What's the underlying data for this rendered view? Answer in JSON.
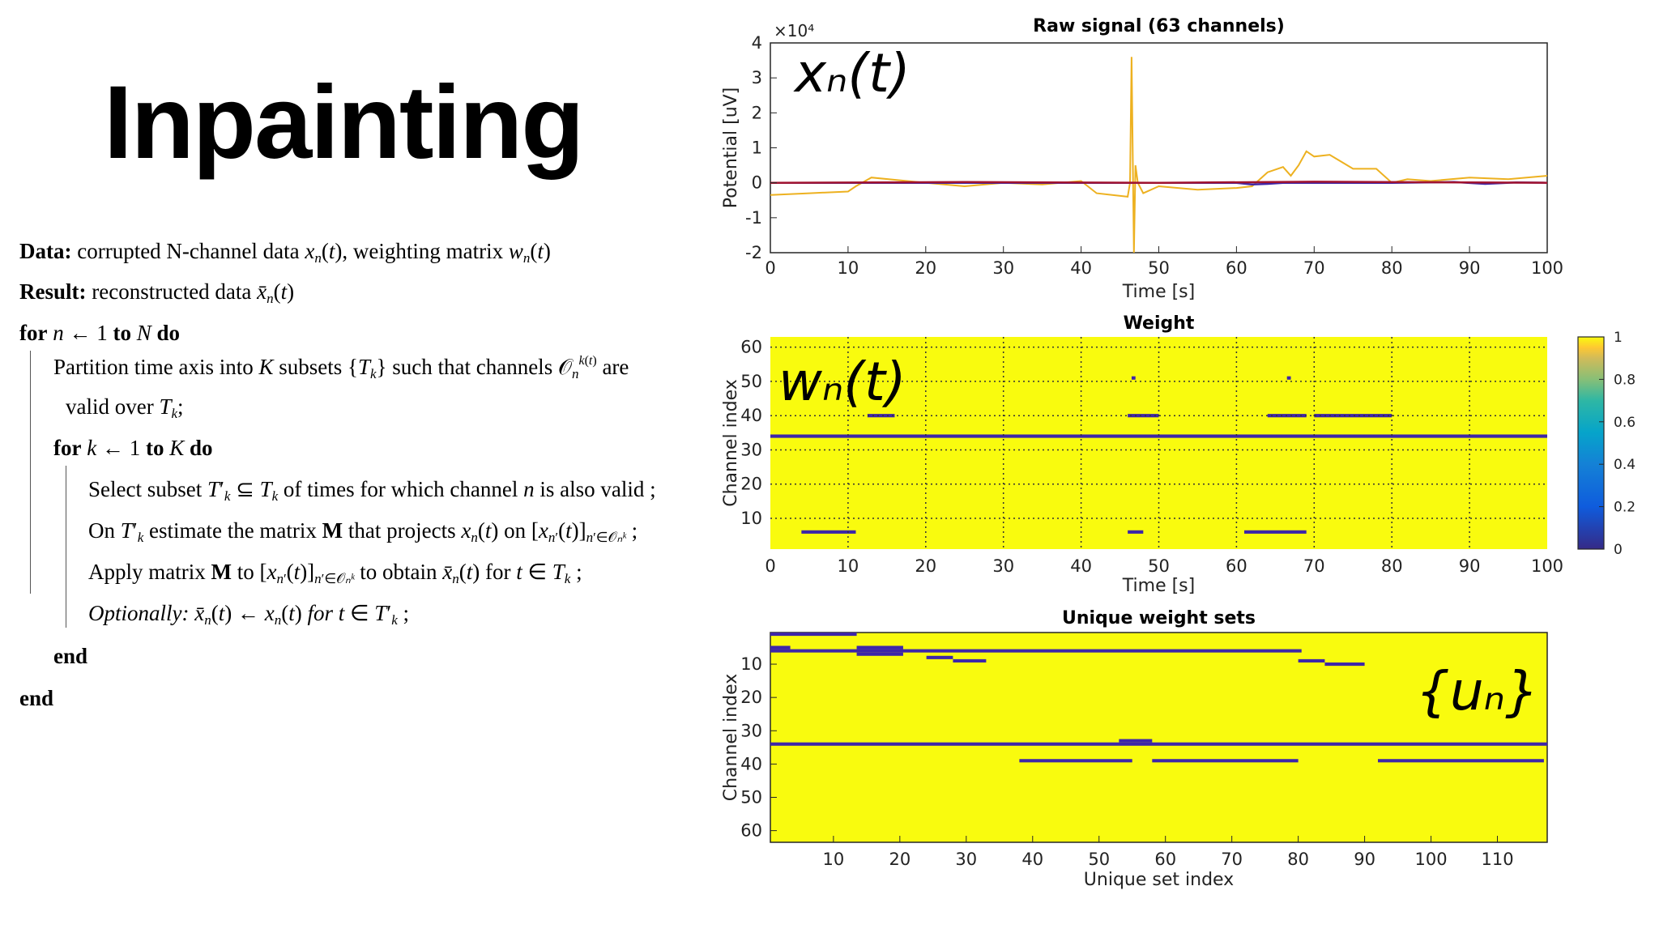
{
  "slide": {
    "title": "Inpainting"
  },
  "algorithm": {
    "data_label": "Data:",
    "data_text": "corrupted N-channel data xₙ(t), weighting matrix wₙ(t)",
    "result_label": "Result:",
    "result_text": "reconstructed data x̄ₙ(t)",
    "for_n": "for n ← 1 to N do",
    "partition_1": "Partition time axis into K subsets {Tₖ} such that channels Oₙᵏ⁽ᵗ⁾ are",
    "partition_2": "valid over Tₖ;",
    "for_k": "for k ← 1 to K do",
    "select": "Select subset T′ₖ ⊆ Tₖ of times for which channel n is also valid ;",
    "estimate": "On T′ₖ estimate the matrix M that projects xₙ(t) on [xₙ′(t)]ₙ′∈Oₙᵏ ;",
    "apply": "Apply matrix M to [xₙ′(t)]ₙ′∈Oₙᵏ to obtain x̄ₙ(t) for t ∈ Tₖ ;",
    "optionally": "Optionally: x̄ₙ(t) ← xₙ(t) for t ∈ T′ₖ ;",
    "end_inner": "end",
    "end_outer": "end"
  },
  "colors": {
    "signal_orange": "#EDB120",
    "weight_yellow": "#F9FB0E",
    "weight_blue": "#3E26A8",
    "text": "#000000"
  },
  "chart_data": [
    {
      "type": "line",
      "title": "Raw signal (63 channels)",
      "xlabel": "Time [s]",
      "ylabel": "Potential [uV]",
      "exponent_label": "×10⁴",
      "overlay_label": "xₙ(t)",
      "xlim": [
        0,
        100
      ],
      "ylim": [
        -2,
        4
      ],
      "y_scale": 10000,
      "xticks": [
        0,
        10,
        20,
        30,
        40,
        50,
        60,
        70,
        80,
        90,
        100
      ],
      "yticks": [
        -2,
        -1,
        0,
        1,
        2,
        3,
        4
      ],
      "grid": false,
      "series": [
        {
          "color": "#EDB120",
          "x": [
            0,
            5,
            10,
            11,
            13,
            20,
            25,
            30,
            35,
            40,
            42,
            44,
            46,
            46.3,
            46.5,
            46.8,
            47,
            47.3,
            48,
            50,
            55,
            60,
            62,
            64,
            66,
            67,
            68,
            69,
            70,
            72,
            75,
            78,
            80,
            82,
            85,
            90,
            95,
            100
          ],
          "y": [
            -0.35,
            -0.3,
            -0.25,
            -0.1,
            0.15,
            0.0,
            -0.1,
            0.0,
            -0.05,
            0.05,
            -0.3,
            -0.35,
            -0.4,
            0.0,
            3.6,
            -2.0,
            0.5,
            0.0,
            -0.3,
            -0.1,
            -0.2,
            -0.15,
            -0.1,
            0.3,
            0.45,
            0.2,
            0.5,
            0.9,
            0.75,
            0.8,
            0.4,
            0.4,
            0.0,
            0.1,
            0.05,
            0.15,
            0.1,
            0.2
          ]
        },
        {
          "color": "#3E26A8",
          "x": [
            0,
            20,
            40,
            50,
            60,
            62,
            64,
            66,
            80,
            88,
            92,
            96,
            100
          ],
          "y": [
            0,
            0,
            0,
            0,
            0,
            -0.05,
            -0.03,
            0,
            0,
            0.02,
            -0.03,
            0.01,
            0
          ]
        },
        {
          "color": "#A2142F",
          "x": [
            0,
            25,
            50,
            70,
            100
          ],
          "y": [
            0,
            0.02,
            0,
            0.03,
            0
          ]
        }
      ]
    },
    {
      "type": "heatmap",
      "title": "Weight",
      "xlabel": "Time [s]",
      "ylabel": "Channel index",
      "overlay_label": "wₙ(t)",
      "xlim": [
        0,
        100
      ],
      "ylim": [
        1,
        63
      ],
      "xticks": [
        0,
        10,
        20,
        30,
        40,
        50,
        60,
        70,
        80,
        90,
        100
      ],
      "yticks": [
        10,
        20,
        30,
        40,
        50,
        60
      ],
      "grid": true,
      "colorbar_ticks": [
        0,
        0.2,
        0.4,
        0.6,
        0.8,
        1
      ],
      "zero_weight_segments": [
        {
          "channel": 34,
          "x0": 0,
          "x1": 100
        },
        {
          "channel": 40,
          "x0": 12.5,
          "x1": 16
        },
        {
          "channel": 40,
          "x0": 46,
          "x1": 50
        },
        {
          "channel": 40,
          "x0": 64,
          "x1": 69
        },
        {
          "channel": 40,
          "x0": 70,
          "x1": 80
        },
        {
          "channel": 6,
          "x0": 4,
          "x1": 11
        },
        {
          "channel": 6,
          "x0": 46,
          "x1": 48
        },
        {
          "channel": 6,
          "x0": 61,
          "x1": 69
        },
        {
          "channel": 51,
          "x0": 46.5,
          "x1": 47
        },
        {
          "channel": 51,
          "x0": 66.5,
          "x1": 67
        }
      ]
    },
    {
      "type": "heatmap",
      "title": "Unique weight sets",
      "xlabel": "Unique set index",
      "ylabel": "Channel index",
      "overlay_label": "{uₙ}",
      "xlim": [
        0.5,
        117.5
      ],
      "ylim": [
        1,
        63
      ],
      "xticks": [
        10,
        20,
        30,
        40,
        50,
        60,
        70,
        80,
        90,
        100,
        110
      ],
      "yticks": [
        10,
        20,
        30,
        40,
        50,
        60
      ],
      "grid": false,
      "zero_weight_segments": [
        {
          "channel": 1,
          "x0": 0.5,
          "x1": 13.5
        },
        {
          "channel": 5,
          "x0": 0.5,
          "x1": 3.5
        },
        {
          "channel": 5,
          "x0": 13.5,
          "x1": 20.5
        },
        {
          "channel": 6,
          "x0": 0.5,
          "x1": 80.5
        },
        {
          "channel": 7,
          "x0": 13.5,
          "x1": 20.5
        },
        {
          "channel": 8,
          "x0": 24,
          "x1": 28
        },
        {
          "channel": 9,
          "x0": 28,
          "x1": 33
        },
        {
          "channel": 9,
          "x0": 80,
          "x1": 84
        },
        {
          "channel": 10,
          "x0": 84,
          "x1": 90
        },
        {
          "channel": 34,
          "x0": 0.5,
          "x1": 117.5
        },
        {
          "channel": 33,
          "x0": 53,
          "x1": 58
        },
        {
          "channel": 39,
          "x0": 38,
          "x1": 55
        },
        {
          "channel": 39,
          "x0": 58,
          "x1": 80
        },
        {
          "channel": 39,
          "x0": 92,
          "x1": 117
        }
      ]
    }
  ]
}
